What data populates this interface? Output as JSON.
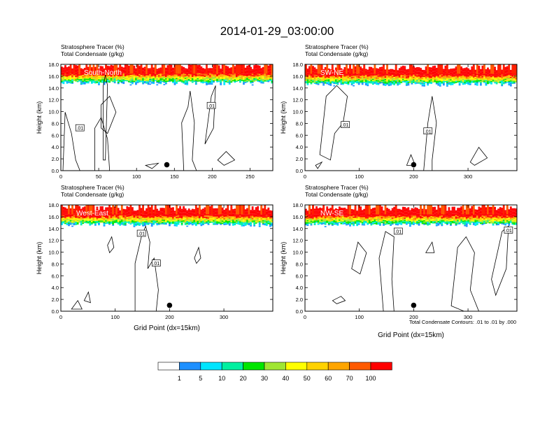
{
  "figure_title": "2014-01-29_03:00:00",
  "colors": [
    "#ffffff",
    "#1e90ff",
    "#00e5ff",
    "#00f0a0",
    "#00e600",
    "#a0e632",
    "#ffff00",
    "#ffd200",
    "#ffa500",
    "#ff5a00",
    "#ff0000"
  ],
  "colorbar": {
    "labels": [
      "1",
      "5",
      "10",
      "20",
      "30",
      "40",
      "50",
      "60",
      "70",
      "100"
    ]
  },
  "contour_info": "Total Condensate Contours: .01 to .01 by .000",
  "chart_data": [
    {
      "type": "heatmap",
      "title_line1": "Stratosphere Tracer   (%)",
      "title_line2": "Total Condensate   (g/kg)",
      "panel_label": "South-North",
      "xlabel": "",
      "ylabel": "Height (km)",
      "xlim": [
        0,
        280
      ],
      "ylim": [
        0,
        18
      ],
      "xticks": [
        "0",
        "50",
        "100",
        "150",
        "200",
        "250"
      ],
      "yticks": [
        "0.0",
        "2.0",
        "4.0",
        "6.0",
        "8.0",
        "10.0",
        "12.0",
        "14.0",
        "16.0",
        "18.0"
      ],
      "tracer_bottom_km": 15.2,
      "contour_labels": [
        ".01",
        ".01"
      ],
      "marker_x": 140
    },
    {
      "type": "heatmap",
      "title_line1": "Stratosphere Tracer   (%)",
      "title_line2": "Total Condensate   (g/kg)",
      "panel_label": "SW-NE",
      "xlabel": "",
      "ylabel": "Height (km)",
      "xlim": [
        0,
        390
      ],
      "ylim": [
        0,
        18
      ],
      "xticks": [
        "0",
        "100",
        "200",
        "300"
      ],
      "yticks": [
        "0.0",
        "2.0",
        "4.0",
        "6.0",
        "8.0",
        "10.0",
        "12.0",
        "14.0",
        "16.0",
        "18.0"
      ],
      "tracer_bottom_km": 15.0,
      "contour_labels": [
        ".01",
        ".01"
      ],
      "marker_x": 200
    },
    {
      "type": "heatmap",
      "title_line1": "Stratosphere Tracer   (%)",
      "title_line2": "Total Condensate   (g/kg)",
      "panel_label": "West-East",
      "xlabel": "Grid Point (dx=15km)",
      "ylabel": "Height (km)",
      "xlim": [
        0,
        390
      ],
      "ylim": [
        0,
        18
      ],
      "xticks": [
        "0",
        "100",
        "200",
        "300"
      ],
      "yticks": [
        "0.0",
        "2.0",
        "4.0",
        "6.0",
        "8.0",
        "10.0",
        "12.0",
        "14.0",
        "16.0",
        "18.0"
      ],
      "tracer_bottom_km": 15.0,
      "contour_labels": [
        ".01",
        ".01"
      ],
      "marker_x": 200
    },
    {
      "type": "heatmap",
      "title_line1": "Stratosphere Tracer   (%)",
      "title_line2": "Total Condensate   (g/kg)",
      "panel_label": "NW-SE",
      "xlabel": "Grid Point (dx=15km)",
      "ylabel": "Height (km)",
      "xlim": [
        0,
        390
      ],
      "ylim": [
        0,
        18
      ],
      "xticks": [
        "0",
        "100",
        "200",
        "300"
      ],
      "yticks": [
        "0.0",
        "2.0",
        "4.0",
        "6.0",
        "8.0",
        "10.0",
        "12.0",
        "14.0",
        "16.0",
        "18.0"
      ],
      "tracer_bottom_km": 15.0,
      "contour_labels": [
        ".01",
        ".01"
      ],
      "marker_x": 200
    }
  ]
}
